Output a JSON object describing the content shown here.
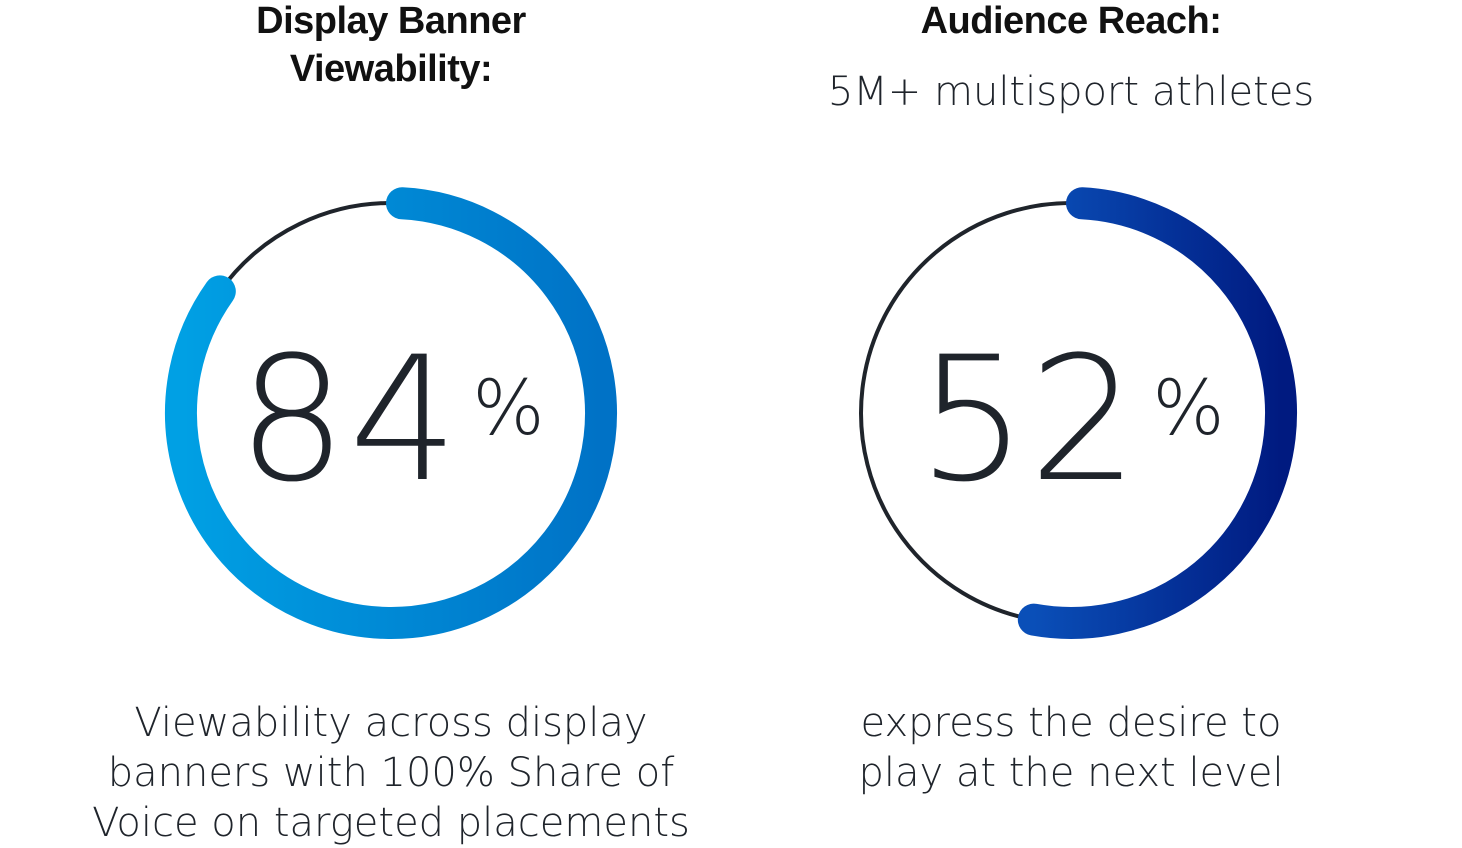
{
  "chart_data": [
    {
      "type": "pie",
      "title_lines": [
        "Display Banner",
        "Viewability:"
      ],
      "value": 84,
      "unit": "%",
      "caption_lines": [
        "Viewability across display",
        "banners with 100% Share of",
        "Voice on targeted placements"
      ],
      "gradient": [
        "#00A0E4",
        "#0072C6"
      ],
      "track_color": "#1f242b"
    },
    {
      "type": "pie",
      "title_lines": [
        "Audience Reach:"
      ],
      "subtitle": "5M+ multisport athletes",
      "value": 52,
      "unit": "%",
      "caption_lines": [
        "express the desire to",
        "play at the next level"
      ],
      "gradient": [
        "#0A4FB8",
        "#001A80"
      ],
      "track_color": "#1f242b"
    }
  ]
}
